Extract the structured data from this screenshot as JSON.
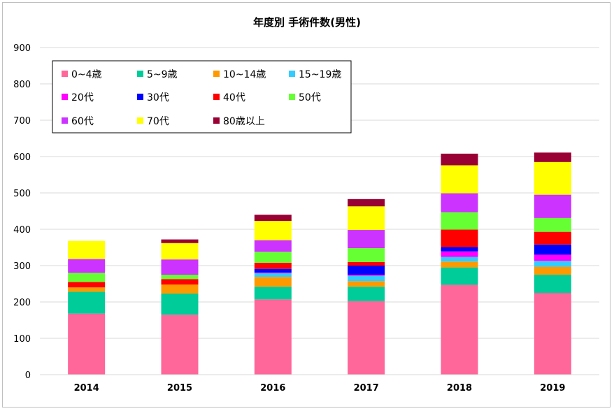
{
  "chart_data": {
    "type": "bar",
    "stacked": true,
    "title": "年度別 手術件数(男性)",
    "xlabel": "",
    "ylabel": "",
    "ylim": [
      0,
      900
    ],
    "yticks": [
      0,
      100,
      200,
      300,
      400,
      500,
      600,
      700,
      800,
      900
    ],
    "grid": true,
    "legend_position": "top-left",
    "categories": [
      "2014",
      "2015",
      "2016",
      "2017",
      "2018",
      "2019"
    ],
    "series": [
      {
        "name": "0~4歳",
        "color": "#ff6699",
        "values": [
          168,
          165,
          207,
          202,
          247,
          225
        ]
      },
      {
        "name": "5~9歳",
        "color": "#00cc99",
        "values": [
          60,
          58,
          35,
          40,
          48,
          50
        ]
      },
      {
        "name": "10~14歳",
        "color": "#ff9900",
        "values": [
          12,
          25,
          27,
          15,
          16,
          22
        ]
      },
      {
        "name": "15~19歳",
        "color": "#33ccff",
        "values": [
          0,
          0,
          10,
          15,
          13,
          16
        ]
      },
      {
        "name": "20代",
        "color": "#ff00ff",
        "values": [
          0,
          0,
          2,
          3,
          15,
          17
        ]
      },
      {
        "name": "30代",
        "color": "#0000ff",
        "values": [
          0,
          0,
          10,
          25,
          12,
          28
        ]
      },
      {
        "name": "40代",
        "color": "#ff0000",
        "values": [
          15,
          15,
          17,
          10,
          48,
          35
        ]
      },
      {
        "name": "50代",
        "color": "#66ff33",
        "values": [
          25,
          12,
          30,
          38,
          48,
          38
        ]
      },
      {
        "name": "60代",
        "color": "#cc33ff",
        "values": [
          38,
          42,
          32,
          50,
          52,
          64
        ]
      },
      {
        "name": "70代",
        "color": "#ffff00",
        "values": [
          50,
          45,
          53,
          65,
          77,
          90
        ]
      },
      {
        "name": "80歳以上",
        "color": "#990033",
        "values": [
          0,
          10,
          17,
          20,
          32,
          26
        ]
      }
    ]
  }
}
